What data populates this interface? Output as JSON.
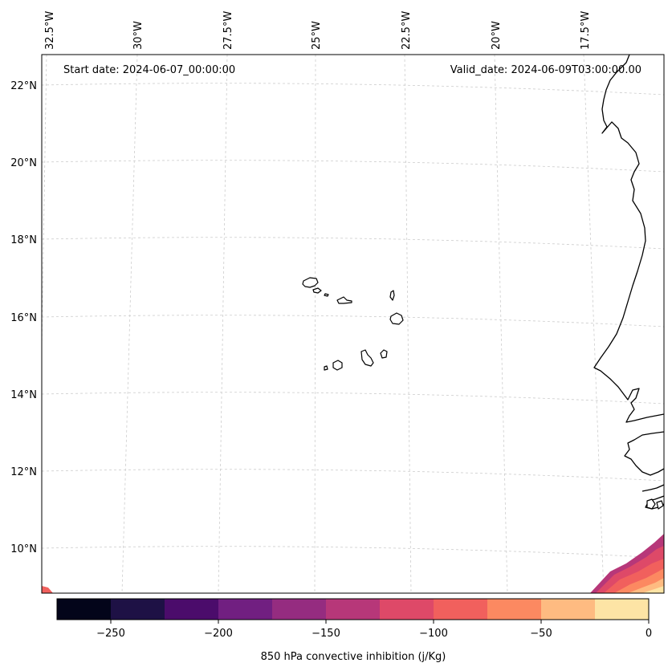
{
  "header": {
    "start_date": "Start date: 2024-06-07_00:00:00",
    "valid_date": "Valid_date: 2024-06-09T03:00:00.00"
  },
  "map": {
    "lon_labels": [
      "32.5°W",
      "30°W",
      "27.5°W",
      "25°W",
      "22.5°W",
      "20°W",
      "17.5°W"
    ],
    "lat_labels": [
      "22°N",
      "20°N",
      "18°N",
      "16°N",
      "14°N",
      "12°N",
      "10°N"
    ],
    "region": "Cabo Verde and West African coast",
    "field_colors": [
      "#fde4a5",
      "#febb81",
      "#fc8961",
      "#f1605d",
      "#de4968",
      "#b73779"
    ]
  },
  "colorbar": {
    "label": "850 hPa convective inhibition (j/Kg)",
    "ticks": [
      "−250",
      "−200",
      "−150",
      "−100",
      "−50",
      "0"
    ],
    "colors": [
      "#03051a",
      "#1e1145",
      "#4b0c6b",
      "#711f81",
      "#952c80",
      "#b73779",
      "#de4968",
      "#f1605d",
      "#fc8961",
      "#febb81",
      "#fde4a5"
    ]
  }
}
